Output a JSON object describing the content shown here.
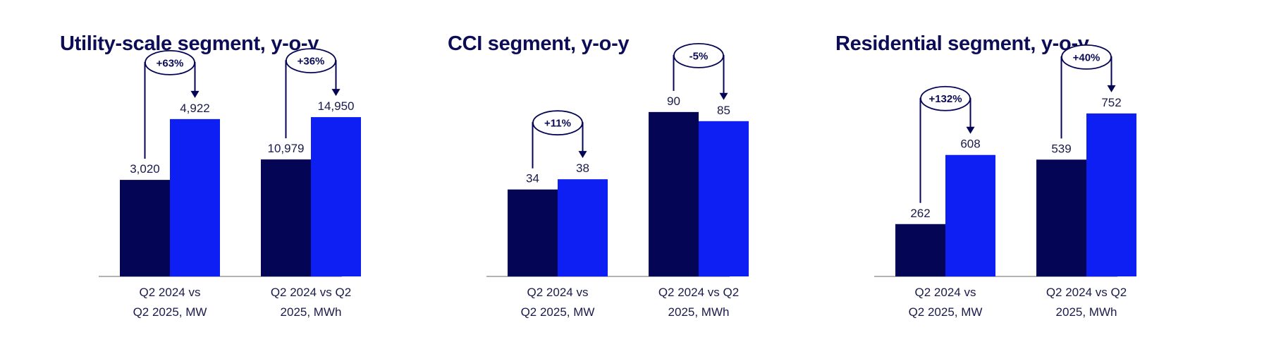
{
  "colors": {
    "q2_2024": "#050556",
    "q2_2025": "#0d1ff2",
    "axis": "#9a9a9a",
    "text": "#0d0d57"
  },
  "charts": [
    {
      "title": "Utility-scale segment, y-o-y"
    },
    {
      "title": "CCI segment, y-o-y"
    },
    {
      "title": "Residential segment, y-o-y"
    }
  ],
  "chart_data": [
    {
      "type": "bar",
      "title": "Utility-scale segment, y-o-y",
      "categories": [
        [
          "Q2 2024 vs",
          "Q2 2025, MW"
        ],
        [
          "Q2 2024 vs Q2",
          "2025, MWh"
        ]
      ],
      "series": [
        {
          "values": [
            3020,
            10979
          ],
          "labels": [
            "3,020",
            "10,979"
          ]
        },
        {
          "values": [
            4922,
            14950
          ],
          "labels": [
            "4,922",
            "14,950"
          ]
        }
      ],
      "changes": [
        "+63%",
        "+36%"
      ],
      "ylim_per_group": [
        [
          0,
          6000
        ],
        [
          0,
          18000
        ]
      ]
    },
    {
      "type": "bar",
      "title": "CCI segment, y-o-y",
      "categories": [
        [
          "Q2 2024 vs",
          "Q2 2025, MW"
        ],
        [
          "Q2 2024 vs Q2",
          "2025, MWh"
        ]
      ],
      "series": [
        {
          "values": [
            34,
            90
          ],
          "labels": [
            "34",
            "90"
          ]
        },
        {
          "values": [
            38,
            85
          ],
          "labels": [
            "38",
            "85"
          ]
        }
      ],
      "changes": [
        "+11%",
        "-5%"
      ],
      "ylim_per_group": [
        [
          0,
          75
        ],
        [
          0,
          105
        ]
      ]
    },
    {
      "type": "bar",
      "title": "Residential segment, y-o-y",
      "categories": [
        [
          "Q2 2024 vs",
          "Q2 2025, MW"
        ],
        [
          "Q2 2024 vs Q2",
          "2025, MWh"
        ]
      ],
      "series": [
        {
          "values": [
            262,
            539
          ],
          "labels": [
            "262",
            "539"
          ]
        },
        {
          "values": [
            608,
            752
          ],
          "labels": [
            "608",
            "752"
          ]
        }
      ],
      "changes": [
        "+132%",
        "+40%"
      ],
      "ylim_per_group": [
        [
          0,
          960
        ],
        [
          0,
          885
        ]
      ]
    }
  ]
}
